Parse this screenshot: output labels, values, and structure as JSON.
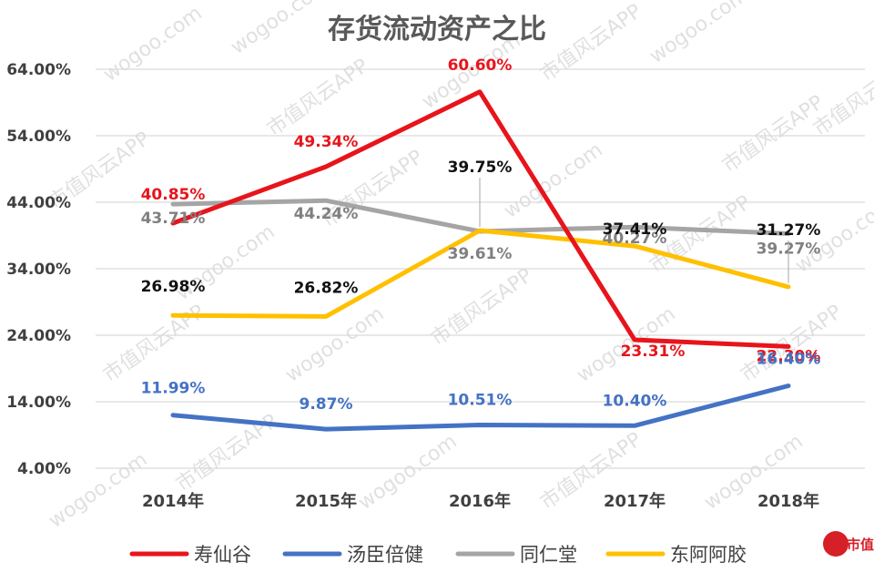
{
  "chart_data": {
    "type": "line",
    "title": "存货流动资产之比",
    "categories": [
      "2014年",
      "2015年",
      "2016年",
      "2017年",
      "2018年"
    ],
    "y_ticks": [
      "64.00%",
      "54.00%",
      "44.00%",
      "34.00%",
      "24.00%",
      "14.00%",
      "4.00%"
    ],
    "ylim": [
      4,
      64
    ],
    "grid": true,
    "legend_position": "bottom",
    "series": [
      {
        "name": "寿仙谷",
        "color": "#e8141b",
        "values": [
          40.85,
          49.34,
          60.6,
          23.31,
          22.3
        ],
        "labels": [
          "40.85%",
          "49.34%",
          "60.60%",
          "23.31%",
          "22.30%"
        ],
        "label_color": "#e8141b"
      },
      {
        "name": "汤臣倍健",
        "color": "#4472c4",
        "values": [
          11.99,
          9.87,
          10.51,
          10.4,
          16.4
        ],
        "labels": [
          "11.99%",
          "9.87%",
          "10.51%",
          "10.40%",
          "16.40%"
        ],
        "label_color": "#4472c4"
      },
      {
        "name": "同仁堂",
        "color": "#a5a5a5",
        "values": [
          43.71,
          44.24,
          39.61,
          40.27,
          39.27
        ],
        "labels": [
          "43.71%",
          "44.24%",
          "39.61%",
          "40.27%",
          "39.27%"
        ],
        "label_color": "#808080"
      },
      {
        "name": "东阿阿胶",
        "color": "#ffc000",
        "values": [
          26.98,
          26.82,
          39.75,
          37.41,
          31.27
        ],
        "labels": [
          "26.98%",
          "26.82%",
          "39.75%",
          "37.41%",
          "31.27%"
        ],
        "label_color": "#111111"
      }
    ]
  },
  "watermark": {
    "text_a": "市值风云APP",
    "text_b": "wogoo.com",
    "logo_text": "市值"
  }
}
